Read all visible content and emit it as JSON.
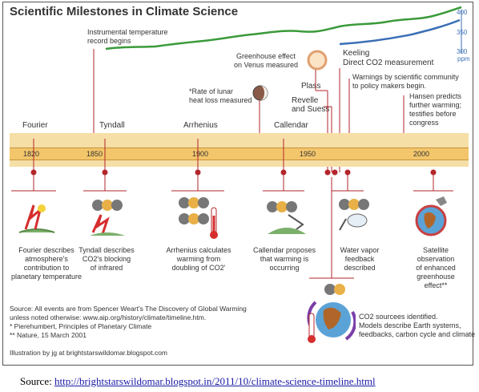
{
  "title": "Scientific Milestones in Climate Science",
  "ppm_ticks": [
    "400",
    "350",
    "300"
  ],
  "ppm_unit": "ppm",
  "top_notes": {
    "instrumental": "Instrumental temperature\nrecord begins",
    "venus": "Greenhouse effect\non Venus measured",
    "lunar": "*Rate of lunar\nheat loss measured",
    "plass": "Plass",
    "revelle": "Revelle\nand Suess",
    "keeling_title": "Keeling",
    "keeling_sub": "Direct CO2 measurement",
    "warnings": "Warnings by scientific community\nto policy makers begin.",
    "hansen": "Hansen predicts\nfurther warming;\ntestifies before\ncongress"
  },
  "names": {
    "fourier": "Fourier",
    "tyndall": "Tyndall",
    "arrhenius": "Arrhenius",
    "callendar": "Callendar"
  },
  "years": [
    "1820",
    "1850",
    "1900",
    "1950",
    "2000"
  ],
  "bottom_notes": {
    "fourier": "Fourier describes\natmosphere's\ncontribution to\nplanetary temperature",
    "tyndall": "Tyndall describes\nCO2's blocking\nof infrared",
    "arrhenius": "Arrhenius calculates\nwarming from\ndoubling of CO2'",
    "callendar": "Callendar proposes\nthat warming is\noccurring",
    "vapor": "Water vapor\nfeedback\ndescribed",
    "satellite": "Satellite\nobservation\nof enhanced\ngreenhouse\neffect**",
    "co2": "CO2 sourcees identified.\nModels describe Earth systems,\nfeedbacks, carbon cycle and climate"
  },
  "source_block": "Source: All events are from Spencer Weart's The Discovery of Global Warming\nunless noted otherwise: www.aip.org/history/climate/timeline.htm.\n* Pierehumbert, Principles of Planetary Climate\n** Nature, 15 March 2001",
  "illustration": "Illustration by jg at brightstarswildomar.blogspot.com",
  "caption_prefix": "Source: ",
  "caption_link": "http://brightstarswildomar.blogspot.in/2011/10/climate-science-timeline.html",
  "colors": {
    "band": "#f6dfa6",
    "bar": "#f3c66b",
    "marker": "#b3262b",
    "temp_line": "#3a9a3a",
    "co2_line": "#3a6fb5"
  }
}
